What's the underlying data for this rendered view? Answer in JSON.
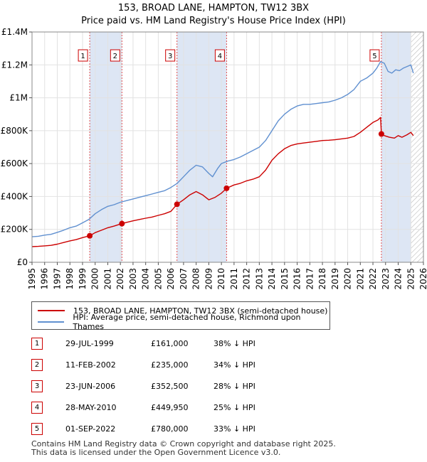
{
  "header": {
    "title_line1": "153, BROAD LANE, HAMPTON, TW12 3BX",
    "title_line2": "Price paid vs. HM Land Registry's House Price Index (HPI)"
  },
  "legend": {
    "items": [
      {
        "label": "153, BROAD LANE, HAMPTON, TW12 3BX (semi-detached house)",
        "color": "#cc0000"
      },
      {
        "label": "HPI: Average price, semi-detached house, Richmond upon Thames",
        "color": "#6090d0"
      }
    ]
  },
  "sales": [
    {
      "num": "1",
      "date": "29-JUL-1999",
      "price": "£161,000",
      "hpi": "38% ↓ HPI"
    },
    {
      "num": "2",
      "date": "11-FEB-2002",
      "price": "£235,000",
      "hpi": "34% ↓ HPI"
    },
    {
      "num": "3",
      "date": "23-JUN-2006",
      "price": "£352,500",
      "hpi": "28% ↓ HPI"
    },
    {
      "num": "4",
      "date": "28-MAY-2010",
      "price": "£449,950",
      "hpi": "25% ↓ HPI"
    },
    {
      "num": "5",
      "date": "01-SEP-2022",
      "price": "£780,000",
      "hpi": "33% ↓ HPI"
    }
  ],
  "footer": {
    "line1": "Contains HM Land Registry data © Crown copyright and database right 2025.",
    "line2": "This data is licensed under the Open Government Licence v3.0."
  },
  "chart_data": {
    "type": "line",
    "title": "153, BROAD LANE, HAMPTON, TW12 3BX",
    "subtitle": "Price paid vs. HM Land Registry's House Price Index (HPI)",
    "xlabel": "",
    "ylabel": "",
    "xlim": [
      1995,
      2026
    ],
    "ylim": [
      0,
      1400000
    ],
    "y_ticks": [
      {
        "value": 0,
        "label": "£0"
      },
      {
        "value": 200000,
        "label": "£200K"
      },
      {
        "value": 400000,
        "label": "£400K"
      },
      {
        "value": 600000,
        "label": "£600K"
      },
      {
        "value": 800000,
        "label": "£800K"
      },
      {
        "value": 1000000,
        "label": "£1M"
      },
      {
        "value": 1200000,
        "label": "£1.2M"
      },
      {
        "value": 1400000,
        "label": "£1.4M"
      }
    ],
    "x_ticks": [
      "1995",
      "1996",
      "1997",
      "1998",
      "1999",
      "2000",
      "2001",
      "2002",
      "2003",
      "2004",
      "2005",
      "2006",
      "2007",
      "2008",
      "2009",
      "2010",
      "2011",
      "2012",
      "2013",
      "2014",
      "2015",
      "2016",
      "2017",
      "2018",
      "2019",
      "2020",
      "2021",
      "2022",
      "2023",
      "2024",
      "2025",
      "2026"
    ],
    "grid": true,
    "shaded_periods": [
      [
        1999.57,
        2002.12
      ],
      [
        2006.48,
        2010.41
      ],
      [
        2022.67,
        2025.0
      ]
    ],
    "hatched_period": [
      2025.0,
      2026.0
    ],
    "sale_markers": [
      {
        "label": "1",
        "x": 1999.57,
        "y": 161000
      },
      {
        "label": "2",
        "x": 2002.12,
        "y": 235000
      },
      {
        "label": "3",
        "x": 2006.48,
        "y": 352500
      },
      {
        "label": "4",
        "x": 2010.41,
        "y": 449950
      },
      {
        "label": "5",
        "x": 2022.67,
        "y": 780000
      }
    ],
    "series": [
      {
        "name": "HPI: Average price, semi-detached house, Richmond upon Thames",
        "color": "#6090d0",
        "x": [
          1995.0,
          1995.5,
          1996.0,
          1996.5,
          1997.0,
          1997.5,
          1998.0,
          1998.5,
          1999.0,
          1999.5,
          2000.0,
          2000.5,
          2001.0,
          2001.5,
          2002.0,
          2002.5,
          2003.0,
          2003.5,
          2004.0,
          2004.5,
          2005.0,
          2005.5,
          2006.0,
          2006.5,
          2007.0,
          2007.5,
          2008.0,
          2008.5,
          2009.0,
          2009.3,
          2009.7,
          2010.0,
          2010.5,
          2011.0,
          2011.5,
          2012.0,
          2012.5,
          2013.0,
          2013.5,
          2014.0,
          2014.5,
          2015.0,
          2015.5,
          2016.0,
          2016.5,
          2017.0,
          2017.5,
          2018.0,
          2018.5,
          2019.0,
          2019.5,
          2020.0,
          2020.5,
          2021.0,
          2021.5,
          2022.0,
          2022.3,
          2022.6,
          2022.9,
          2023.2,
          2023.5,
          2023.8,
          2024.1,
          2024.4,
          2024.7,
          2025.0,
          2025.2
        ],
        "y": [
          155000,
          158000,
          165000,
          170000,
          182000,
          195000,
          210000,
          220000,
          240000,
          260000,
          295000,
          320000,
          340000,
          350000,
          365000,
          375000,
          385000,
          395000,
          405000,
          415000,
          425000,
          435000,
          455000,
          480000,
          520000,
          560000,
          590000,
          580000,
          540000,
          520000,
          570000,
          600000,
          615000,
          625000,
          640000,
          660000,
          680000,
          700000,
          740000,
          800000,
          860000,
          900000,
          930000,
          950000,
          960000,
          960000,
          965000,
          970000,
          975000,
          985000,
          1000000,
          1020000,
          1050000,
          1100000,
          1120000,
          1150000,
          1180000,
          1220000,
          1210000,
          1160000,
          1150000,
          1170000,
          1165000,
          1180000,
          1190000,
          1200000,
          1150000
        ]
      },
      {
        "name": "153, BROAD LANE, HAMPTON, TW12 3BX (semi-detached house)",
        "color": "#cc0000",
        "x": [
          1995.0,
          1995.5,
          1996.0,
          1996.5,
          1997.0,
          1997.5,
          1998.0,
          1998.5,
          1999.0,
          1999.57,
          2000.0,
          2000.5,
          2001.0,
          2001.5,
          2002.12,
          2002.5,
          2003.0,
          2003.5,
          2004.0,
          2004.5,
          2005.0,
          2005.5,
          2006.0,
          2006.48,
          2007.0,
          2007.5,
          2008.0,
          2008.5,
          2009.0,
          2009.5,
          2010.0,
          2010.41,
          2011.0,
          2011.5,
          2012.0,
          2012.5,
          2013.0,
          2013.5,
          2014.0,
          2014.5,
          2015.0,
          2015.5,
          2016.0,
          2016.5,
          2017.0,
          2017.5,
          2018.0,
          2018.5,
          2019.0,
          2019.5,
          2020.0,
          2020.5,
          2021.0,
          2021.5,
          2022.0,
          2022.4,
          2022.6,
          2022.67,
          2022.9,
          2023.3,
          2023.7,
          2024.0,
          2024.3,
          2024.7,
          2025.0,
          2025.2
        ],
        "y": [
          95000,
          97000,
          100000,
          103000,
          110000,
          120000,
          130000,
          138000,
          150000,
          161000,
          180000,
          195000,
          210000,
          220000,
          235000,
          243000,
          252000,
          260000,
          268000,
          275000,
          285000,
          295000,
          310000,
          352500,
          380000,
          410000,
          430000,
          410000,
          380000,
          395000,
          420000,
          449950,
          470000,
          480000,
          495000,
          505000,
          520000,
          560000,
          620000,
          660000,
          690000,
          710000,
          720000,
          725000,
          730000,
          735000,
          740000,
          742000,
          745000,
          750000,
          755000,
          765000,
          790000,
          820000,
          850000,
          865000,
          880000,
          780000,
          770000,
          760000,
          755000,
          770000,
          760000,
          775000,
          790000,
          770000
        ]
      }
    ]
  }
}
